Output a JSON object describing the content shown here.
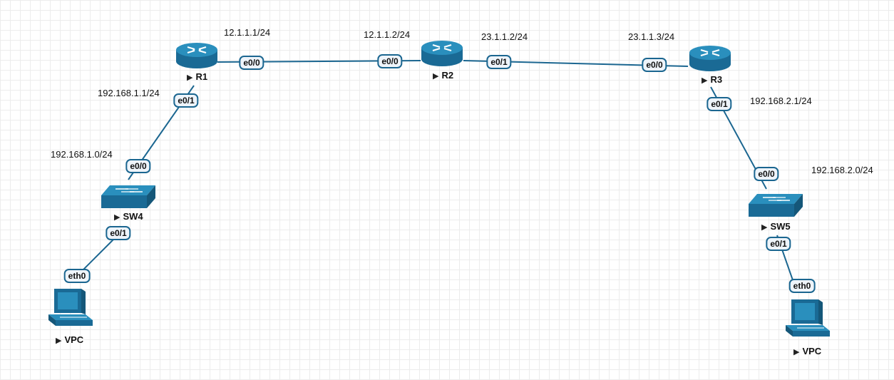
{
  "nodes": {
    "r1": {
      "name": "R1",
      "icon": "router-icon"
    },
    "r2": {
      "name": "R2",
      "icon": "router-icon"
    },
    "r3": {
      "name": "R3",
      "icon": "router-icon"
    },
    "sw4": {
      "name": "SW4",
      "icon": "switch-icon"
    },
    "sw5": {
      "name": "SW5",
      "icon": "switch-icon"
    },
    "vpc_left": {
      "name": "VPC",
      "icon": "pc-icon"
    },
    "vpc_right": {
      "name": "VPC",
      "icon": "pc-icon"
    }
  },
  "ports": {
    "r1_e00": "e0/0",
    "r2_e00": "e0/0",
    "r2_e01": "e0/1",
    "r3_e00": "e0/0",
    "r1_e01": "e0/1",
    "sw4_e00": "e0/0",
    "sw4_e01": "e0/1",
    "vpc_left_eth0": "eth0",
    "r3_e01": "e0/1",
    "sw5_e00": "e0/0",
    "sw5_e01": "e0/1",
    "vpc_right_eth0": "eth0"
  },
  "ip_labels": {
    "r1_r2_r1": "12.1.1.1/24",
    "r1_r2_r2": "12.1.1.2/24",
    "r2_r3_r2": "23.1.1.2/24",
    "r2_r3_r3": "23.1.1.3/24",
    "r1_lan": "192.168.1.1/24",
    "left_net": "192.168.1.0/24",
    "r3_lan": "192.168.2.1/24",
    "right_net": "192.168.2.0/24"
  },
  "colors": {
    "link": "#1b6690",
    "device_top": "#2a8fbd",
    "device_side": "#1a6a95",
    "device_dark": "#155779",
    "port_bg": "#eef4fa"
  }
}
